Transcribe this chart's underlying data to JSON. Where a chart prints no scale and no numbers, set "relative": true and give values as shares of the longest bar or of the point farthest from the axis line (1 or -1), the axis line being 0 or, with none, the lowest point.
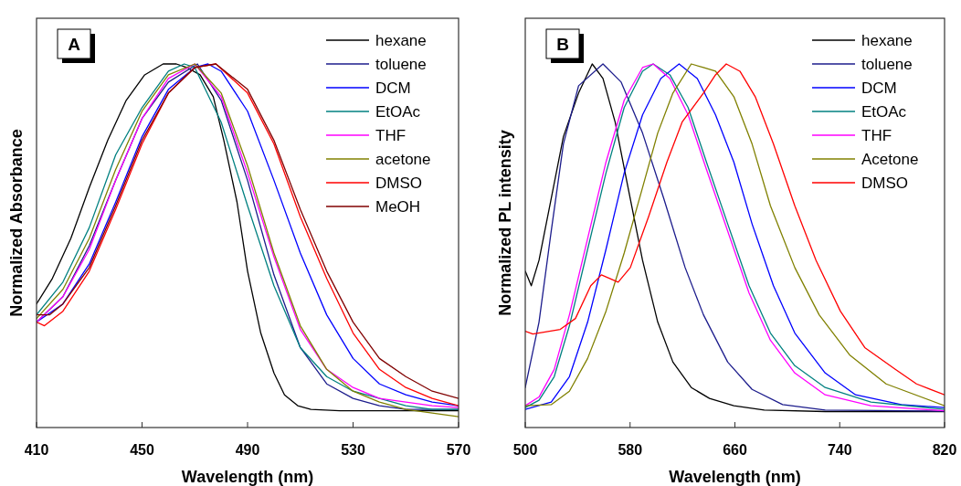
{
  "chart_data": [
    {
      "type": "line",
      "relative": true,
      "xlabel": "Wavelength (nm)",
      "ylabel": "Normalized Absorbance",
      "annotations": [
        "A"
      ],
      "xlim": [
        410,
        570
      ],
      "xticks": [
        410,
        450,
        490,
        530,
        570
      ],
      "tick_labels": "x",
      "legend": "top right",
      "series": [
        {
          "name": "hexane",
          "color": "#000000",
          "x": [
            410,
            416,
            423,
            430,
            437,
            444,
            451,
            458,
            463,
            467,
            472,
            477,
            481,
            486,
            490,
            495,
            500,
            504,
            509,
            514,
            525,
            548,
            570
          ],
          "values": [
            0.34,
            0.41,
            0.52,
            0.66,
            0.79,
            0.9,
            0.97,
            1.0,
            1.0,
            0.99,
            0.97,
            0.91,
            0.79,
            0.62,
            0.43,
            0.26,
            0.15,
            0.09,
            0.06,
            0.05,
            0.046,
            0.046,
            0.046
          ]
        },
        {
          "name": "toluene",
          "color": "#1c1c8c",
          "x": [
            410,
            420,
            430,
            440,
            450,
            460,
            471,
            480,
            490,
            500,
            510,
            520,
            530,
            540,
            550,
            560,
            570
          ],
          "values": [
            0.29,
            0.36,
            0.5,
            0.68,
            0.85,
            0.95,
            1.0,
            0.9,
            0.68,
            0.42,
            0.22,
            0.12,
            0.08,
            0.06,
            0.05,
            0.05,
            0.05
          ]
        },
        {
          "name": "DCM",
          "color": "#0000ff",
          "x": [
            410,
            420,
            430,
            440,
            450,
            460,
            470,
            475,
            480,
            490,
            500,
            510,
            520,
            530,
            540,
            550,
            560,
            570
          ],
          "values": [
            0.29,
            0.34,
            0.45,
            0.62,
            0.8,
            0.93,
            0.99,
            1.0,
            0.98,
            0.87,
            0.68,
            0.48,
            0.31,
            0.19,
            0.12,
            0.09,
            0.07,
            0.06
          ]
        },
        {
          "name": "EtOAc",
          "color": "#008080",
          "x": [
            410,
            420,
            430,
            440,
            450,
            460,
            466,
            470,
            480,
            490,
            500,
            510,
            520,
            530,
            540,
            550,
            560,
            570
          ],
          "values": [
            0.31,
            0.4,
            0.55,
            0.75,
            0.88,
            0.98,
            1.0,
            0.99,
            0.84,
            0.61,
            0.39,
            0.22,
            0.14,
            0.1,
            0.08,
            0.06,
            0.05,
            0.05
          ]
        },
        {
          "name": "THF",
          "color": "#ff00ff",
          "x": [
            410,
            420,
            430,
            440,
            450,
            460,
            470,
            480,
            490,
            500,
            510,
            520,
            530,
            540,
            550,
            560,
            570
          ],
          "values": [
            0.29,
            0.36,
            0.49,
            0.68,
            0.85,
            0.96,
            1.0,
            0.91,
            0.7,
            0.47,
            0.27,
            0.16,
            0.11,
            0.08,
            0.07,
            0.06,
            0.055
          ]
        },
        {
          "name": "acetone",
          "color": "#808000",
          "x": [
            410,
            420,
            430,
            440,
            450,
            460,
            470,
            480,
            490,
            500,
            510,
            520,
            530,
            540,
            550,
            560,
            570
          ],
          "values": [
            0.3,
            0.38,
            0.52,
            0.71,
            0.87,
            0.97,
            1.0,
            0.92,
            0.72,
            0.48,
            0.28,
            0.16,
            0.1,
            0.07,
            0.05,
            0.04,
            0.03
          ]
        },
        {
          "name": "DMSO",
          "color": "#ff0000",
          "x": [
            410,
            413,
            420,
            430,
            440,
            450,
            460,
            470,
            478,
            490,
            500,
            510,
            520,
            530,
            540,
            550,
            560,
            570
          ],
          "values": [
            0.29,
            0.28,
            0.32,
            0.43,
            0.6,
            0.78,
            0.92,
            0.99,
            1.0,
            0.92,
            0.78,
            0.58,
            0.41,
            0.26,
            0.16,
            0.11,
            0.08,
            0.06
          ]
        },
        {
          "name": "MeOH",
          "color": "#800000",
          "x": [
            410,
            415,
            420,
            430,
            440,
            450,
            460,
            470,
            478,
            490,
            500,
            510,
            520,
            530,
            540,
            550,
            560,
            570
          ],
          "values": [
            0.31,
            0.31,
            0.34,
            0.44,
            0.61,
            0.79,
            0.92,
            0.99,
            1.0,
            0.93,
            0.79,
            0.6,
            0.43,
            0.29,
            0.19,
            0.14,
            0.1,
            0.08
          ]
        }
      ]
    },
    {
      "type": "line",
      "relative": true,
      "xlabel": "Wavelength (nm)",
      "ylabel": "Normalized PL intensity",
      "annotations": [
        "B"
      ],
      "xlim": [
        500,
        820
      ],
      "xticks": [
        500,
        580,
        660,
        740,
        820
      ],
      "tick_labels": "x",
      "legend": "top right",
      "series": [
        {
          "name": "hexane",
          "color": "#000000",
          "x": [
            500,
            504.6,
            510.5,
            519.8,
            529.1,
            540.7,
            551.1,
            559.3,
            568.6,
            577.9,
            589.5,
            601.1,
            612.7,
            626.7,
            640.6,
            659.2,
            682.4,
            728.9,
            820
          ],
          "values": [
            0.43,
            0.39,
            0.46,
            0.63,
            0.8,
            0.92,
            1.0,
            0.96,
            0.84,
            0.67,
            0.46,
            0.29,
            0.18,
            0.11,
            0.08,
            0.06,
            0.048,
            0.044,
            0.044
          ]
        },
        {
          "name": "toluene",
          "color": "#1c1c8c",
          "x": [
            500,
            510.5,
            519.8,
            529.1,
            540.7,
            559.3,
            573.2,
            589.5,
            605.7,
            622,
            636,
            654.5,
            673.1,
            696.4,
            728.9,
            820
          ],
          "values": [
            0.11,
            0.29,
            0.54,
            0.78,
            0.94,
            1.0,
            0.95,
            0.81,
            0.63,
            0.44,
            0.31,
            0.18,
            0.105,
            0.063,
            0.048,
            0.045
          ]
        },
        {
          "name": "DCM",
          "color": "#0000ff",
          "x": [
            500,
            519.8,
            533.7,
            547.6,
            561.6,
            575.5,
            589.5,
            603.4,
            617.4,
            631.3,
            645.2,
            659.2,
            673.1,
            689.4,
            705.7,
            728.9,
            752.1,
            787,
            820
          ],
          "values": [
            0.05,
            0.07,
            0.14,
            0.29,
            0.49,
            0.7,
            0.86,
            0.96,
            1.0,
            0.96,
            0.86,
            0.73,
            0.56,
            0.39,
            0.26,
            0.15,
            0.09,
            0.063,
            0.055
          ]
        },
        {
          "name": "EtOAc",
          "color": "#008080",
          "x": [
            500,
            510.5,
            522.1,
            533.7,
            547.6,
            561.6,
            575.5,
            589.5,
            597.6,
            610.4,
            624.3,
            638.3,
            654.5,
            670.8,
            687.1,
            705.7,
            728.9,
            763.8,
            820
          ],
          "values": [
            0.055,
            0.075,
            0.14,
            0.28,
            0.49,
            0.7,
            0.88,
            0.98,
            1.0,
            0.97,
            0.88,
            0.73,
            0.56,
            0.39,
            0.26,
            0.17,
            0.11,
            0.07,
            0.05
          ]
        },
        {
          "name": "THF",
          "color": "#ff00ff",
          "x": [
            500,
            510.5,
            522.1,
            533.7,
            547.6,
            561.6,
            575.5,
            589.5,
            597.6,
            610.4,
            624.3,
            638.3,
            654.5,
            670.8,
            687.1,
            705.7,
            728.9,
            763.8,
            820
          ],
          "values": [
            0.06,
            0.084,
            0.16,
            0.31,
            0.52,
            0.73,
            0.9,
            0.99,
            1.0,
            0.96,
            0.86,
            0.71,
            0.54,
            0.37,
            0.24,
            0.15,
            0.09,
            0.06,
            0.046
          ]
        },
        {
          "name": "Acetone",
          "color": "#808000",
          "x": [
            500,
            519.8,
            533.7,
            547.6,
            561.6,
            575.5,
            589.5,
            601.1,
            612.7,
            626.7,
            636,
            645.2,
            659.2,
            673.1,
            687.1,
            705.7,
            724.3,
            747.5,
            775.4,
            820
          ],
          "values": [
            0.06,
            0.063,
            0.1,
            0.19,
            0.32,
            0.48,
            0.66,
            0.81,
            0.92,
            1.0,
            0.99,
            0.98,
            0.91,
            0.78,
            0.61,
            0.44,
            0.31,
            0.2,
            0.12,
            0.06
          ]
        },
        {
          "name": "DMSO",
          "color": "#ff0000",
          "x": [
            500,
            505.8,
            526.7,
            538.3,
            550,
            558.1,
            570.9,
            580.2,
            594.1,
            608.1,
            619.7,
            636,
            645.2,
            653.4,
            663.8,
            675.5,
            689.4,
            705.7,
            721.9,
            740.5,
            759.1,
            782.4,
            798.6,
            820
          ],
          "values": [
            0.265,
            0.257,
            0.27,
            0.3,
            0.39,
            0.42,
            0.4,
            0.44,
            0.58,
            0.73,
            0.84,
            0.92,
            0.97,
            1.0,
            0.98,
            0.91,
            0.78,
            0.61,
            0.46,
            0.32,
            0.22,
            0.16,
            0.12,
            0.09
          ]
        }
      ]
    }
  ]
}
